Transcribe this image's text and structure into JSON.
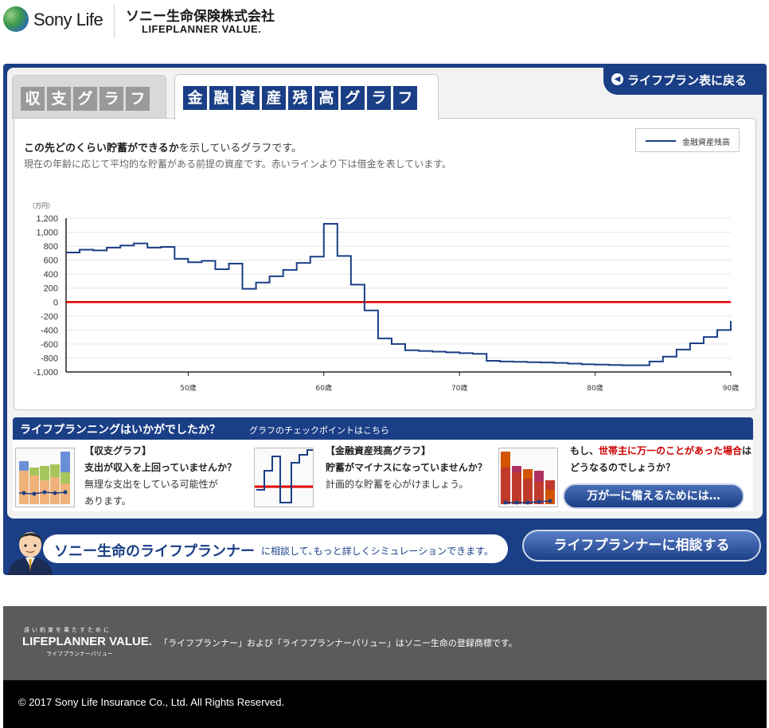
{
  "header": {
    "brand": "Sony Life",
    "company_name": "ソニー生命保険株式会社",
    "company_sub": "LIFEPLANNER VALUE."
  },
  "tabs": [
    {
      "label": "収支グラフ",
      "chars": [
        "収",
        "支",
        "グ",
        "ラ",
        "フ"
      ],
      "active": false
    },
    {
      "label": "金融資産残高グラフ",
      "chars": [
        "金",
        "融",
        "資",
        "産",
        "残",
        "高",
        "グ",
        "ラ",
        "フ"
      ],
      "active": true
    }
  ],
  "back_button": {
    "label": "ライフプラン表に戻る"
  },
  "chart_info": {
    "desc_strong": "この先どのくらい貯蓄ができるか",
    "desc_rest": "を示しているグラフです。",
    "desc2": "現在の年齢に応じて平均的な貯蓄がある前提の資産です。赤いラインより下は借金を表しています。",
    "legend_label": "金融資産残高",
    "unit_label": "（万円）"
  },
  "chart_data": {
    "type": "line",
    "step": true,
    "x_label_suffix": "歳",
    "xlim": [
      41,
      90
    ],
    "ylim": [
      -1000,
      1200
    ],
    "y_ticks": [
      1200,
      1000,
      800,
      600,
      400,
      200,
      0,
      -200,
      -400,
      -600,
      -800,
      -1000
    ],
    "y_tick_labels": [
      "1,200",
      "1,000",
      "800",
      "600",
      "400",
      "200",
      "0",
      "-200",
      "-400",
      "-600",
      "-800",
      "-1,000"
    ],
    "x_ticks": [
      50,
      60,
      70,
      80,
      90
    ],
    "x_tick_labels": [
      "50歳",
      "60歳",
      "70歳",
      "80歳",
      "90歳"
    ],
    "zero_line_color": "#e00000",
    "series": [
      {
        "name": "金融資産残高",
        "color": "#1b3f86",
        "x": [
          41,
          42,
          43,
          44,
          45,
          46,
          47,
          48,
          49,
          50,
          51,
          52,
          53,
          54,
          55,
          56,
          57,
          58,
          59,
          60,
          61,
          62,
          63,
          64,
          65,
          66,
          67,
          68,
          69,
          70,
          71,
          72,
          73,
          74,
          75,
          76,
          77,
          78,
          79,
          80,
          81,
          82,
          83,
          84,
          85,
          86,
          87,
          88,
          89,
          90
        ],
        "values": [
          710,
          750,
          740,
          780,
          810,
          840,
          780,
          790,
          620,
          570,
          590,
          470,
          550,
          190,
          280,
          370,
          460,
          560,
          650,
          1120,
          660,
          250,
          -120,
          -520,
          -600,
          -690,
          -700,
          -710,
          -720,
          -730,
          -740,
          -840,
          -850,
          -855,
          -860,
          -865,
          -870,
          -880,
          -890,
          -895,
          -900,
          -905,
          -905,
          -850,
          -780,
          -680,
          -590,
          -500,
          -400,
          -270
        ]
      }
    ]
  },
  "advice": {
    "title": "ライフプランニングはいかがでしたか？",
    "subtitle": "グラフのチェックポイントはこちら",
    "items": [
      {
        "heading_bracket": "【収支グラフ】",
        "heading": "支出が収入を上回っていませんか？",
        "body1": "無理な支出をしている可能性が",
        "body2": "あります。"
      },
      {
        "heading_bracket": "【金融資産残高グラフ】",
        "heading": "貯蓄がマイナスになっていませんか？",
        "body1": "計画的な貯蓄を心がけましょう。"
      },
      {
        "pre": "もし、",
        "red": "世帯主に万一のことがあった場合",
        "post": "は",
        "line2": "どうなるのでしょうか？"
      }
    ],
    "prepare_button": "万が一に備えるためには…"
  },
  "promo": {
    "strong": "ソニー生命のライフプランナー",
    "rest": "に相談して､もっと詳しくシミュレーションできます。",
    "button": "ライフプランナーに相談する"
  },
  "footer": {
    "tagline": "遠い約束を果たすために",
    "logo": "LIFEPLANNER VALUE.",
    "logo_sub": "ライフプランナーバリュー",
    "note": "「ライフプランナー」および「ライフプランナーバリュー」はソニー生命の登録商標です。",
    "copyright": "© 2017 Sony Life Insurance Co., Ltd. All Rights Reserved."
  },
  "colors": {
    "brand_blue": "#1b3f86",
    "zero_line": "#e00000",
    "footer_gray": "#5b5b5b"
  }
}
